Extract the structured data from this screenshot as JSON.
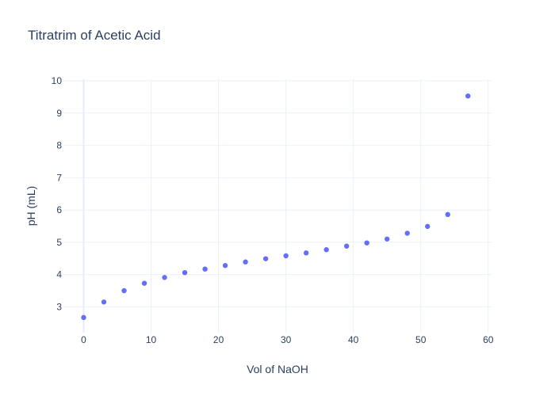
{
  "chart_data": {
    "type": "scatter",
    "title": "Titratrim of Acetic Acid",
    "xlabel": "Vol of NaOH",
    "ylabel": "pH (mL)",
    "xlim": [
      -3,
      60.5
    ],
    "ylim": [
      2.2,
      10.05
    ],
    "x_ticks": [
      0,
      10,
      20,
      30,
      40,
      50,
      60
    ],
    "y_ticks": [
      3,
      4,
      5,
      6,
      7,
      8,
      9,
      10
    ],
    "grid": true,
    "legend": "none",
    "marker_color": "#636efa",
    "series": [
      {
        "x": [
          0,
          3,
          6,
          9,
          12,
          15,
          18,
          21,
          24,
          27,
          30,
          33,
          36,
          39,
          42,
          45,
          48,
          51,
          54,
          57
        ],
        "y": [
          2.67,
          3.15,
          3.5,
          3.73,
          3.91,
          4.06,
          4.17,
          4.28,
          4.39,
          4.49,
          4.58,
          4.67,
          4.77,
          4.88,
          4.98,
          5.1,
          5.28,
          5.49,
          5.86,
          9.53
        ]
      }
    ]
  }
}
